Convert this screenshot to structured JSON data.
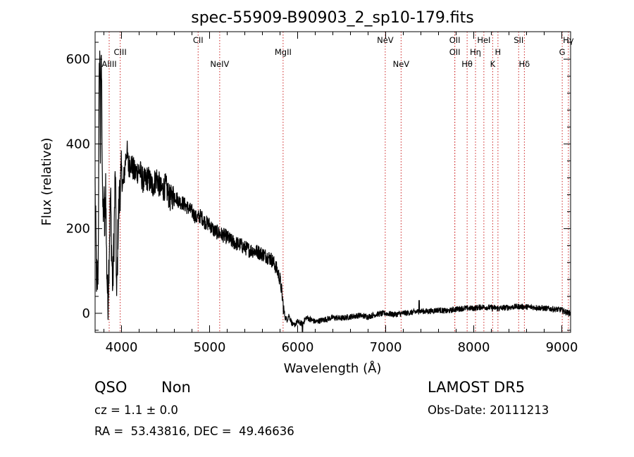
{
  "chart_data": {
    "type": "line",
    "title": "spec-55909-B90903_2_sp10-179.fits",
    "xlabel": "Wavelength (Å)",
    "ylabel": "Flux (relative)",
    "xlim": [
      3700,
      9100
    ],
    "ylim": [
      -45,
      665
    ],
    "x_ticks": [
      4000,
      5000,
      6000,
      7000,
      8000,
      9000
    ],
    "y_ticks": [
      0,
      200,
      400,
      600
    ],
    "grid": false,
    "spectrum_color": "#000000",
    "line_marker_color": "#cc2222",
    "anchors": [
      [
        3700,
        300
      ],
      [
        3715,
        90
      ],
      [
        3725,
        60
      ],
      [
        3735,
        120
      ],
      [
        3745,
        500
      ],
      [
        3752,
        640
      ],
      [
        3760,
        380
      ],
      [
        3770,
        620
      ],
      [
        3780,
        400
      ],
      [
        3790,
        200
      ],
      [
        3800,
        280
      ],
      [
        3810,
        180
      ],
      [
        3820,
        320
      ],
      [
        3830,
        130
      ],
      [
        3845,
        20
      ],
      [
        3860,
        150
      ],
      [
        3875,
        280
      ],
      [
        3890,
        130
      ],
      [
        3900,
        60
      ],
      [
        3915,
        180
      ],
      [
        3930,
        340
      ],
      [
        3945,
        20
      ],
      [
        3960,
        200
      ],
      [
        3980,
        290
      ],
      [
        4000,
        330
      ],
      [
        4020,
        300
      ],
      [
        4040,
        350
      ],
      [
        4060,
        390
      ],
      [
        4080,
        340
      ],
      [
        4100,
        360
      ],
      [
        4150,
        330
      ],
      [
        4200,
        340
      ],
      [
        4250,
        310
      ],
      [
        4300,
        320
      ],
      [
        4350,
        300
      ],
      [
        4400,
        320
      ],
      [
        4450,
        290
      ],
      [
        4500,
        300
      ],
      [
        4550,
        270
      ],
      [
        4600,
        280
      ],
      [
        4650,
        265
      ],
      [
        4700,
        260
      ],
      [
        4750,
        250
      ],
      [
        4800,
        240
      ],
      [
        4850,
        225
      ],
      [
        4900,
        230
      ],
      [
        4950,
        215
      ],
      [
        5000,
        210
      ],
      [
        5050,
        195
      ],
      [
        5100,
        190
      ],
      [
        5150,
        185
      ],
      [
        5200,
        180
      ],
      [
        5250,
        170
      ],
      [
        5300,
        165
      ],
      [
        5350,
        162
      ],
      [
        5400,
        155
      ],
      [
        5450,
        150
      ],
      [
        5500,
        148
      ],
      [
        5550,
        145
      ],
      [
        5600,
        140
      ],
      [
        5650,
        135
      ],
      [
        5700,
        128
      ],
      [
        5740,
        115
      ],
      [
        5770,
        100
      ],
      [
        5800,
        80
      ],
      [
        5820,
        50
      ],
      [
        5840,
        10
      ],
      [
        5860,
        -10
      ],
      [
        5880,
        -15
      ],
      [
        5900,
        -5
      ],
      [
        5950,
        -30
      ],
      [
        6000,
        -20
      ],
      [
        6050,
        -25
      ],
      [
        6100,
        -10
      ],
      [
        6150,
        -15
      ],
      [
        6200,
        -20
      ],
      [
        6300,
        -15
      ],
      [
        6400,
        -10
      ],
      [
        6500,
        -12
      ],
      [
        6600,
        -8
      ],
      [
        6700,
        -5
      ],
      [
        6800,
        -8
      ],
      [
        6900,
        -2
      ],
      [
        7000,
        0
      ],
      [
        7100,
        -3
      ],
      [
        7200,
        0
      ],
      [
        7300,
        2
      ],
      [
        7400,
        5
      ],
      [
        7500,
        5
      ],
      [
        7600,
        8
      ],
      [
        7700,
        5
      ],
      [
        7800,
        10
      ],
      [
        7900,
        12
      ],
      [
        8000,
        12
      ],
      [
        8100,
        15
      ],
      [
        8200,
        13
      ],
      [
        8300,
        12
      ],
      [
        8400,
        14
      ],
      [
        8500,
        16
      ],
      [
        8600,
        15
      ],
      [
        8700,
        14
      ],
      [
        8800,
        12
      ],
      [
        8900,
        10
      ],
      [
        9000,
        8
      ],
      [
        9060,
        2
      ],
      [
        9100,
        0
      ]
    ],
    "spikes": [
      {
        "x": 7380,
        "y": 30
      },
      {
        "x": 6055,
        "y": -45
      }
    ],
    "emission_lines": [
      {
        "label": "AlIII",
        "x": 3860,
        "row": 3
      },
      {
        "label": "CIII",
        "x": 3985,
        "row": 2
      },
      {
        "label": "CII",
        "x": 4870,
        "row": 1
      },
      {
        "label": "NeIV",
        "x": 5115,
        "row": 3
      },
      {
        "label": "MgII",
        "x": 5835,
        "row": 2
      },
      {
        "label": "NeV",
        "x": 6995,
        "row": 1
      },
      {
        "label": "NeV",
        "x": 7175,
        "row": 3
      },
      {
        "label": "OII",
        "x": 7785,
        "row": 1
      },
      {
        "label": "OII",
        "x": 7785,
        "row": 2
      },
      {
        "label": "Hθ",
        "x": 7925,
        "row": 3
      },
      {
        "label": "Hη",
        "x": 8020,
        "row": 2
      },
      {
        "label": "HeI",
        "x": 8115,
        "row": 1
      },
      {
        "label": "K",
        "x": 8215,
        "row": 3
      },
      {
        "label": "H",
        "x": 8275,
        "row": 2
      },
      {
        "label": "SII",
        "x": 8510,
        "row": 1
      },
      {
        "label": "Hδ",
        "x": 8575,
        "row": 3
      },
      {
        "label": "G",
        "x": 9005,
        "row": 2
      },
      {
        "label": "Hγ",
        "x": 9075,
        "row": 1
      }
    ]
  },
  "info": {
    "class": "QSO",
    "subclass": "Non",
    "cz": "cz = 1.1 ± 0.0",
    "coords": "RA =  53.43816, DEC =  49.46636",
    "survey": "LAMOST DR5",
    "obs_date": "Obs-Date: 20111213"
  }
}
